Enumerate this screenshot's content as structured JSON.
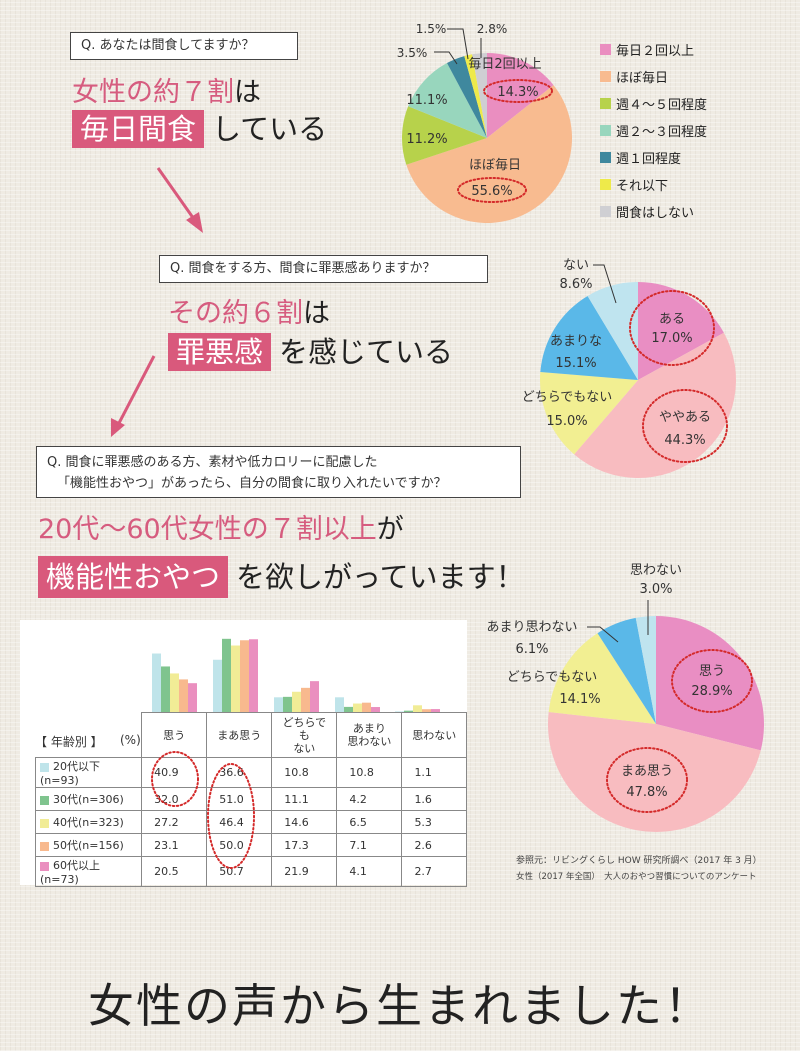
{
  "section1": {
    "question": "Q. あなたは間食してますか？",
    "headline_pink": "女性の約７割",
    "headline_black1": "は",
    "highlight": "毎日間食",
    "headline_black2": "している"
  },
  "section2": {
    "question": "Q. 間食をする方、間食に罪悪感ありますか？",
    "headline_pink": "その約６割",
    "headline_black1": "は",
    "highlight": "罪悪感",
    "headline_black2": "を感じている"
  },
  "section3": {
    "question_line1": "Q. 間食に罪悪感のある方、素材や低カロリーに配慮した",
    "question_line2": "「機能性おやつ」があったら、自分の間食に取り入れたいですか？",
    "headline_pink": "20代～60代女性の７割以上",
    "headline_black1": "が",
    "highlight": "機能性おやつ",
    "headline_black2": "を欲しがっています！"
  },
  "source": {
    "line1": "参照元：リビングくらし HOW 研究所調べ（2017 年 3 月）",
    "line2": "女性（2017 年全国）　大人のおやつ習慣についてのアンケート"
  },
  "footer": {
    "text": "女性の声から生まれました！"
  },
  "colors": {
    "accent": "#d9597c",
    "highlight_ellipse": "#d42a2a"
  },
  "chart_data": [
    {
      "type": "pie",
      "title": "Q. あなたは間食してますか？",
      "legend_position": "right",
      "slices": [
        {
          "label": "毎日２回以上",
          "chart_label": "毎日2回以上",
          "value": 14.3,
          "value_label": "14.3%",
          "color": "#ea8ec0",
          "highlighted": true
        },
        {
          "label": "ほぼ毎日",
          "chart_label": "ほぼ毎日",
          "value": 55.6,
          "value_label": "55.6%",
          "color": "#f8bb90",
          "highlighted": true
        },
        {
          "label": "週４～５回程度",
          "value": 11.2,
          "value_label": "11.2%",
          "color": "#b7d24b"
        },
        {
          "label": "週２～３回程度",
          "value": 11.1,
          "value_label": "11.1%",
          "color": "#98d6bd"
        },
        {
          "label": "週１回程度",
          "value": 3.5,
          "value_label": "3.5%",
          "color": "#3f889e"
        },
        {
          "label": "それ以下",
          "value": 1.5,
          "value_label": "1.5%",
          "color": "#eeea4a"
        },
        {
          "label": "間食はしない",
          "value": 2.8,
          "value_label": "2.8%",
          "color": "#cfcfd3"
        }
      ]
    },
    {
      "type": "pie",
      "title": "Q. 間食をする方、間食に罪悪感ありますか？",
      "slices": [
        {
          "label": "ある",
          "value": 17.0,
          "value_label": "17.0%",
          "color": "#e98ec3",
          "highlighted": true
        },
        {
          "label": "ややある",
          "value": 44.3,
          "value_label": "44.3%",
          "color": "#f8bcc0",
          "highlighted": true
        },
        {
          "label": "どちらでもない",
          "value": 15.0,
          "value_label": "15.0%",
          "color": "#f2ef92"
        },
        {
          "label": "あまりな",
          "value": 15.1,
          "value_label": "15.1%",
          "color": "#5ab8e8"
        },
        {
          "label": "ない",
          "value": 8.6,
          "value_label": "8.6%",
          "color": "#bfe4ef"
        }
      ]
    },
    {
      "type": "pie",
      "title": "「機能性おやつ」があったら、自分の間食に取り入れたいですか？",
      "slices": [
        {
          "label": "思う",
          "value": 28.9,
          "value_label": "28.9%",
          "color": "#e98ec3",
          "highlighted": true
        },
        {
          "label": "まあ思う",
          "value": 47.8,
          "value_label": "47.8%",
          "color": "#f8bcc0",
          "highlighted": true
        },
        {
          "label": "どちらでもない",
          "value": 14.1,
          "value_label": "14.1%",
          "color": "#f2ef92"
        },
        {
          "label": "あまり思わない",
          "value": 6.1,
          "value_label": "6.1%",
          "color": "#5ab8e8"
        },
        {
          "label": "思わない",
          "value": 3.0,
          "value_label": "3.0%",
          "color": "#bfe4ef"
        }
      ]
    },
    {
      "type": "bar",
      "title": "【 年齢別 】",
      "unit": "(%)",
      "categories": [
        "思う",
        "まあ思う",
        "どちらでも\nない",
        "あまり\n思わない",
        "思わない"
      ],
      "category_lines": [
        [
          "思う"
        ],
        [
          "まあ思う"
        ],
        [
          "どちらでも",
          "ない"
        ],
        [
          "あまり",
          "思わない"
        ],
        [
          "思わない"
        ]
      ],
      "ylim": [
        0,
        55
      ],
      "series": [
        {
          "name": "20代以下(n=93)",
          "color": "#bfe4ea",
          "values": [
            40.9,
            36.6,
            10.8,
            10.8,
            1.1
          ]
        },
        {
          "name": "30代(n=306)",
          "color": "#7fc48e",
          "values": [
            32.0,
            51.0,
            11.1,
            4.2,
            1.6
          ]
        },
        {
          "name": "40代(n=323)",
          "color": "#f1ec96",
          "values": [
            27.2,
            46.4,
            14.6,
            6.5,
            5.3
          ]
        },
        {
          "name": "50代(n=156)",
          "color": "#f8b98e",
          "values": [
            23.1,
            50.0,
            17.3,
            7.1,
            2.6
          ]
        },
        {
          "name": "60代以上(n=73)",
          "color": "#ea8fbf",
          "values": [
            20.5,
            50.7,
            21.9,
            4.1,
            2.7
          ]
        }
      ],
      "value_labels": [
        [
          "40.9",
          "36.6",
          "10.8",
          "10.8",
          "1.1"
        ],
        [
          "32.0",
          "51.0",
          "11.1",
          "4.2",
          "1.6"
        ],
        [
          "27.2",
          "46.4",
          "14.6",
          "6.5",
          "5.3"
        ],
        [
          "23.1",
          "50.0",
          "17.3",
          "7.1",
          "2.6"
        ],
        [
          "20.5",
          "50.7",
          "21.9",
          "4.1",
          "2.7"
        ]
      ]
    }
  ]
}
